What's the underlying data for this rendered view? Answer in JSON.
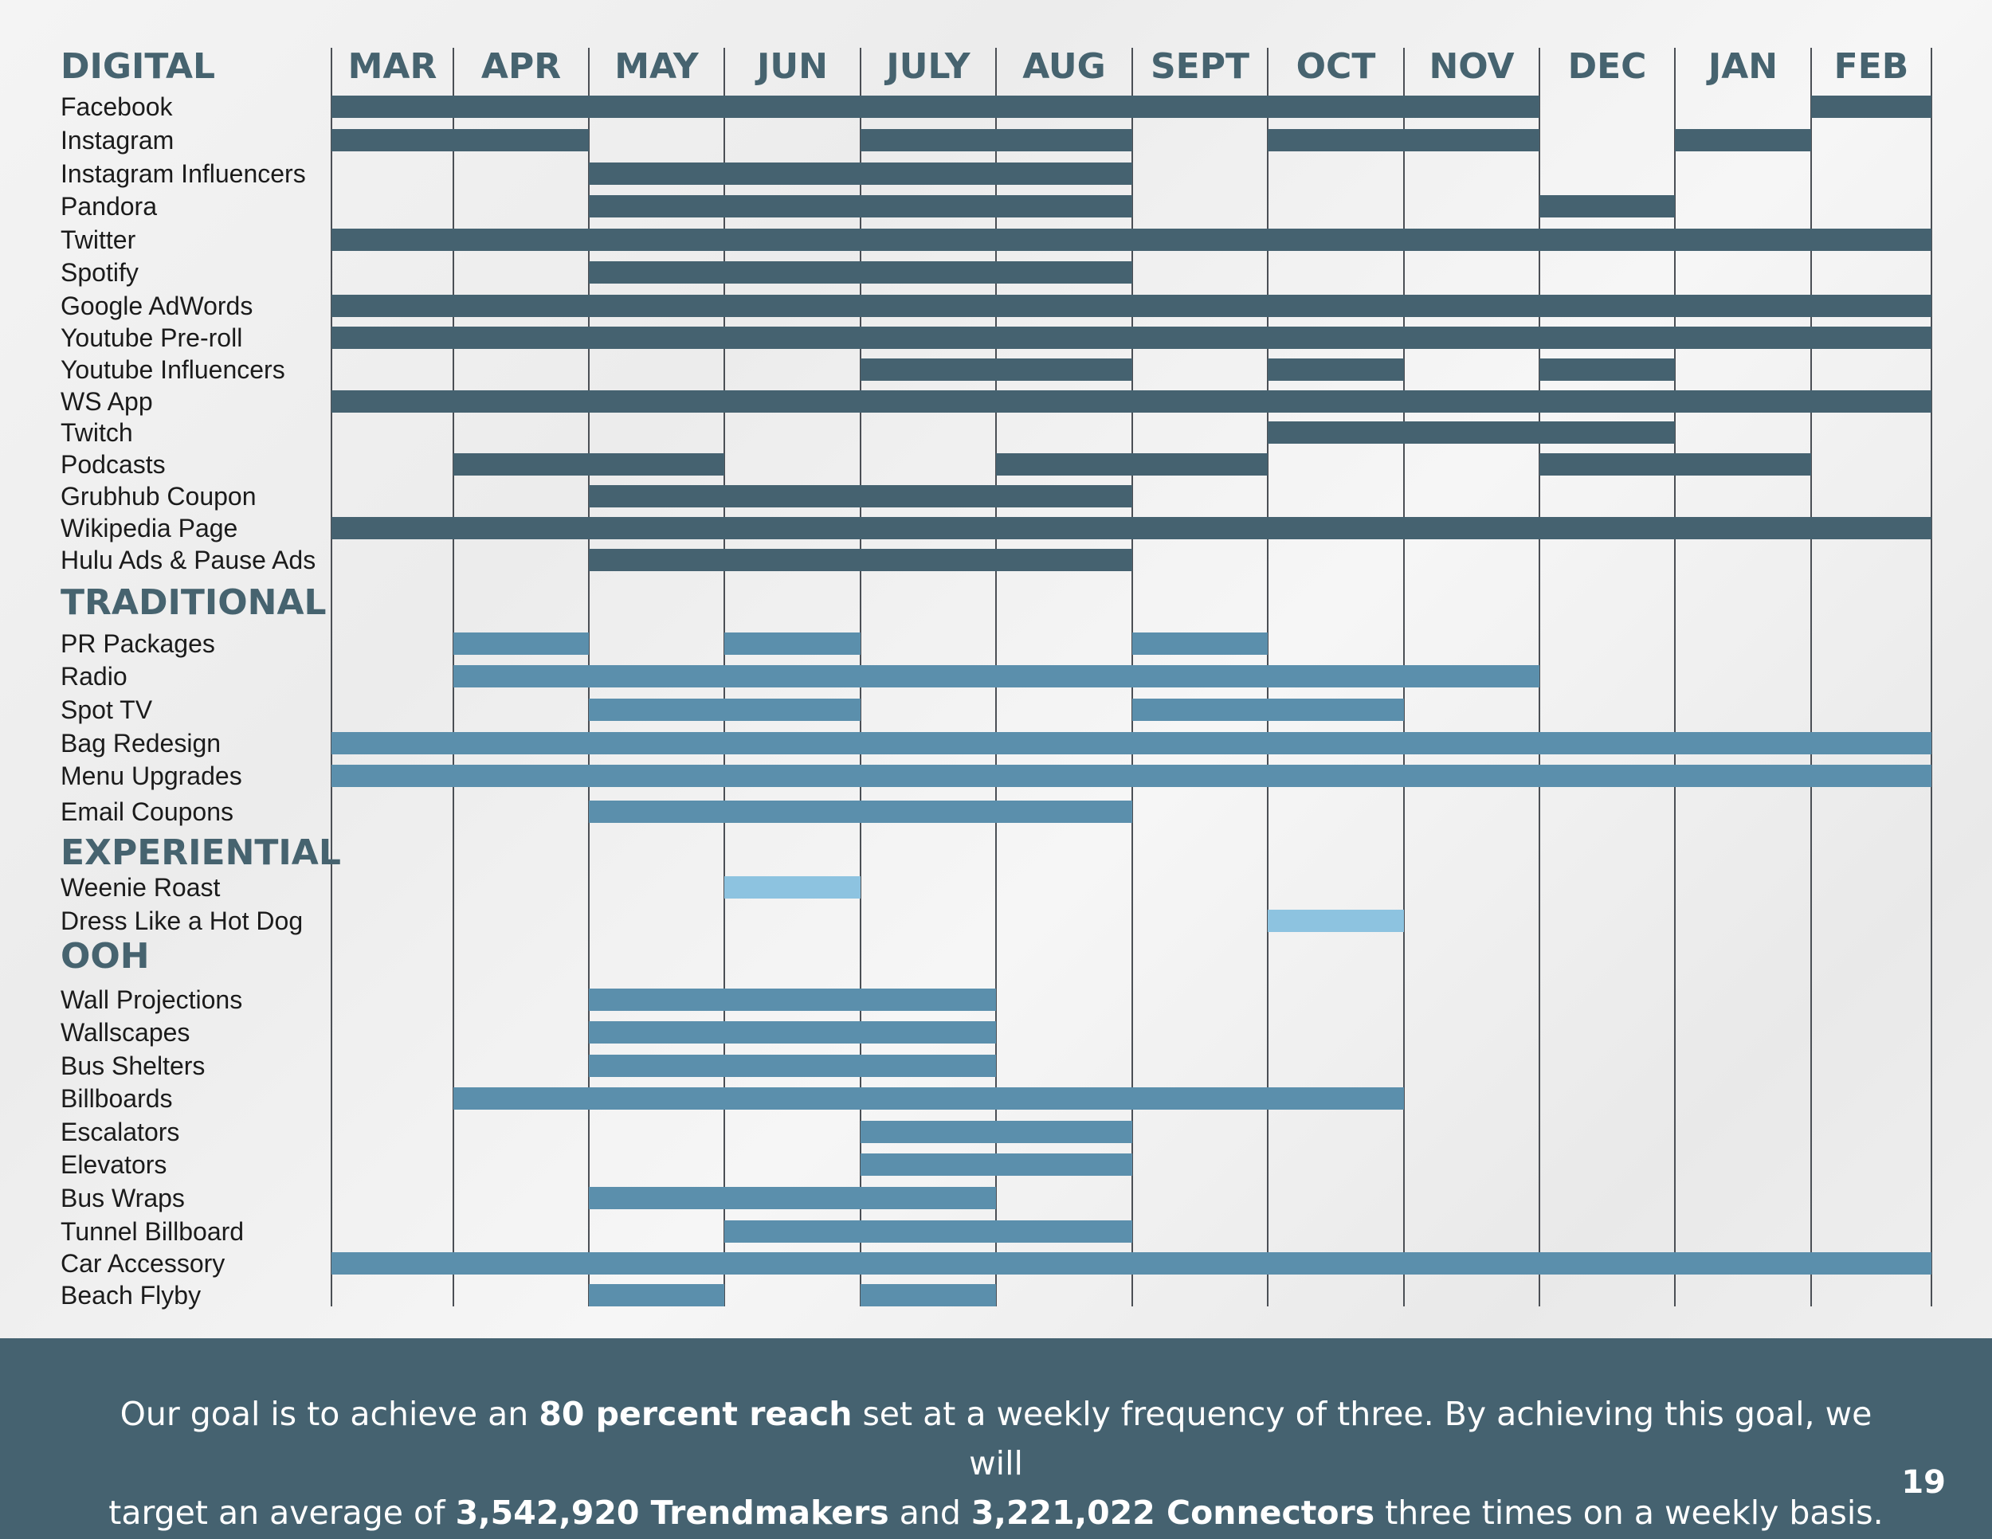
{
  "chart_data": {
    "type": "gantt",
    "months": [
      "MAR",
      "APR",
      "MAY",
      "JUN",
      "JULY",
      "AUG",
      "SEPT",
      "OCT",
      "NOV",
      "DEC",
      "JAN",
      "FEB"
    ],
    "colors": {
      "digital": "#456270",
      "traditional": "#5b8fac",
      "experiential": "#8dc3e0",
      "ooh": "#5b8fac"
    },
    "sections": [
      {
        "title": "DIGITAL",
        "color_key": "digital",
        "rows": [
          {
            "label": "Facebook",
            "spans": [
              [
                0,
                9
              ],
              [
                11,
                12
              ]
            ]
          },
          {
            "label": "Instagram",
            "spans": [
              [
                0,
                2
              ],
              [
                4,
                6
              ],
              [
                7,
                9
              ],
              [
                10,
                11
              ]
            ]
          },
          {
            "label": "Instagram Influencers",
            "spans": [
              [
                2,
                6
              ]
            ]
          },
          {
            "label": "Pandora",
            "spans": [
              [
                2,
                6
              ],
              [
                9,
                10
              ]
            ]
          },
          {
            "label": "Twitter",
            "spans": [
              [
                0,
                12
              ]
            ]
          },
          {
            "label": "Spotify",
            "spans": [
              [
                2,
                6
              ]
            ]
          },
          {
            "label": "Google AdWords",
            "spans": [
              [
                0,
                12
              ]
            ]
          },
          {
            "label": "Youtube Pre-roll",
            "spans": [
              [
                0,
                12
              ]
            ]
          },
          {
            "label": "Youtube Influencers",
            "spans": [
              [
                4,
                6
              ],
              [
                7,
                8
              ],
              [
                9,
                10
              ]
            ]
          },
          {
            "label": "WS App",
            "spans": [
              [
                0,
                12
              ]
            ]
          },
          {
            "label": "Twitch",
            "spans": [
              [
                7,
                10
              ]
            ]
          },
          {
            "label": "Podcasts",
            "spans": [
              [
                1,
                3
              ],
              [
                5,
                7
              ],
              [
                9,
                11
              ]
            ]
          },
          {
            "label": "Grubhub Coupon",
            "spans": [
              [
                2,
                6
              ]
            ]
          },
          {
            "label": "Wikipedia Page",
            "spans": [
              [
                0,
                12
              ]
            ]
          },
          {
            "label": "Hulu Ads & Pause Ads",
            "spans": [
              [
                2,
                6
              ]
            ]
          }
        ]
      },
      {
        "title": "TRADITIONAL",
        "color_key": "traditional",
        "rows": [
          {
            "label": "PR Packages",
            "spans": [
              [
                1,
                2
              ],
              [
                3,
                4
              ],
              [
                6,
                7
              ]
            ]
          },
          {
            "label": "Radio",
            "spans": [
              [
                1,
                9
              ]
            ]
          },
          {
            "label": "Spot TV",
            "spans": [
              [
                2,
                4
              ],
              [
                6,
                8
              ]
            ]
          },
          {
            "label": "Bag Redesign",
            "spans": [
              [
                0,
                12
              ]
            ]
          },
          {
            "label": "Menu Upgrades",
            "spans": [
              [
                0,
                12
              ]
            ]
          },
          {
            "label": "Email Coupons",
            "spans": [
              [
                2,
                6
              ]
            ]
          }
        ]
      },
      {
        "title": "EXPERIENTIAL",
        "color_key": "experiential",
        "rows": [
          {
            "label": "Weenie Roast",
            "spans": [
              [
                3,
                4
              ]
            ]
          },
          {
            "label": "Dress Like a Hot Dog",
            "spans": [
              [
                7,
                8
              ]
            ]
          }
        ]
      },
      {
        "title": "OOH",
        "color_key": "ooh",
        "rows": [
          {
            "label": "Wall Projections",
            "spans": [
              [
                2,
                5
              ]
            ]
          },
          {
            "label": "Wallscapes",
            "spans": [
              [
                2,
                5
              ]
            ]
          },
          {
            "label": "Bus Shelters",
            "spans": [
              [
                2,
                5
              ]
            ]
          },
          {
            "label": "Billboards",
            "spans": [
              [
                1,
                8
              ]
            ]
          },
          {
            "label": "Escalators",
            "spans": [
              [
                4,
                6
              ]
            ]
          },
          {
            "label": "Elevators",
            "spans": [
              [
                4,
                6
              ]
            ]
          },
          {
            "label": "Bus Wraps",
            "spans": [
              [
                2,
                5
              ]
            ]
          },
          {
            "label": "Tunnel Billboard",
            "spans": [
              [
                3,
                6
              ]
            ]
          },
          {
            "label": "Car Accessory",
            "spans": [
              [
                0,
                12
              ]
            ]
          },
          {
            "label": "Beach Flyby",
            "spans": [
              [
                2,
                3
              ],
              [
                4,
                5
              ]
            ]
          }
        ]
      }
    ]
  },
  "footer": {
    "line1": {
      "p1": "Our goal is to achieve an ",
      "b1": "80 percent reach",
      "p2": " set at a weekly frequency of three. By achieving this goal, we will"
    },
    "line2": {
      "p1": "target an average of ",
      "b1": "3,542,920 Trendmakers",
      "p2": " and ",
      "b2": "3,221,022 Connectors",
      "p3": " three times on a weekly basis."
    },
    "page_number": "19"
  }
}
